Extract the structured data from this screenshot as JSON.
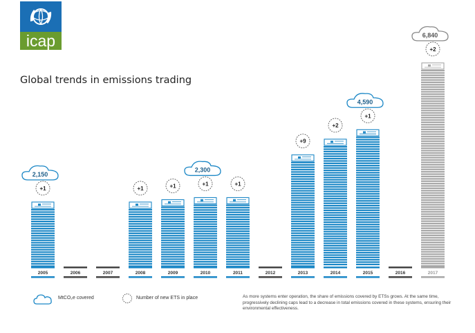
{
  "brand": {
    "logo_text": "icap",
    "logo_color": "#1b6fb5",
    "logo_bar_color": "#6a9c2f"
  },
  "title": "Global trends in emissions trading",
  "chart_data": {
    "type": "bar",
    "title": "Global trends in emissions trading",
    "categories": [
      "2005",
      "2006",
      "2007",
      "2008",
      "2009",
      "2010",
      "2011",
      "2012",
      "2013",
      "2014",
      "2015",
      "2016",
      "2017"
    ],
    "series": [
      {
        "name": "Emissions covered by ETS (MtCO2e)",
        "values": [
          2150,
          0,
          0,
          2150,
          2230,
          2300,
          2300,
          0,
          3740,
          4270,
          4590,
          0,
          6840
        ]
      },
      {
        "name": "Number of new ETS in place",
        "values": [
          1,
          0,
          0,
          1,
          1,
          1,
          1,
          0,
          9,
          2,
          1,
          0,
          2
        ]
      }
    ],
    "circle_labels": [
      "+1",
      "",
      "",
      "+1",
      "+1",
      "+1",
      "+1",
      "",
      "+9",
      "+2",
      "+1",
      "",
      "+2"
    ],
    "cloud_labels": [
      "2,150",
      "",
      "",
      "",
      "",
      "2,300",
      "",
      "",
      "",
      "",
      "4,590",
      "",
      "6,840"
    ],
    "projected_years": [
      "2016",
      "2017"
    ],
    "ylim": [
      0,
      7000
    ],
    "colors": {
      "actual": "#1b87c6",
      "projected": "#a7a7a7",
      "empty_year": "#444444"
    }
  },
  "legend": {
    "cloud_label": "MtCO₂e covered",
    "circle_label": "Number of new ETS in place"
  },
  "note": "As more systems enter operation, the share of emissions covered by ETSs grows. At the same time, progressively declining caps lead to a decrease in total emissions covered in these systems, ensuring their environmental effectiveness."
}
